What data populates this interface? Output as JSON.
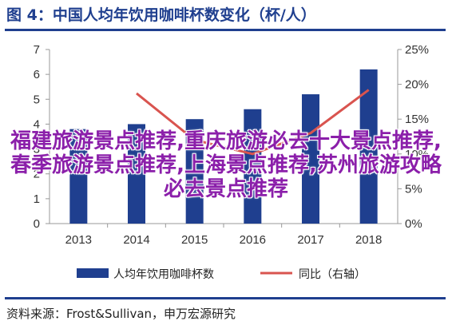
{
  "title": "图 4：中国人均年饮用咖啡杯数变化（杯/人）",
  "source": "资料来源：Frost&Sullivan，申万宏源研究",
  "overlay_text": "福建旅游景点推荐,重庆旅游必去十大景点推荐,春季旅游景点推荐,上海景点推荐,苏州旅游攻略必去景点推荐",
  "colors": {
    "bar": "#1f3f8f",
    "line": "#d9544f",
    "title": "#1f3f8f",
    "overlay": "#8b1faa"
  },
  "chart_data": {
    "type": "bar",
    "categories": [
      "2013",
      "2014",
      "2015",
      "2016",
      "2017",
      "2018"
    ],
    "series": [
      {
        "name": "人均年饮用咖啡杯数",
        "type": "bar",
        "axis": "left",
        "values": [
          3.8,
          4.0,
          4.2,
          4.6,
          5.2,
          6.2
        ]
      },
      {
        "name": "同比（右轴）",
        "type": "line",
        "axis": "right",
        "values": [
          null,
          18.7,
          12.0,
          10.0,
          13.0,
          19.2
        ]
      }
    ],
    "ylim_left": [
      0,
      7
    ],
    "yticks_left": [
      "0",
      "1",
      "2",
      "3",
      "4",
      "5",
      "6",
      "7"
    ],
    "ylim_right": [
      0,
      25
    ],
    "yticks_right": [
      "0%",
      "5%",
      "10%",
      "15%",
      "20%",
      "25%"
    ],
    "legend": [
      "人均年饮用咖啡杯数",
      "同比（右轴）"
    ],
    "legend_position": "bottom",
    "grid": false
  }
}
